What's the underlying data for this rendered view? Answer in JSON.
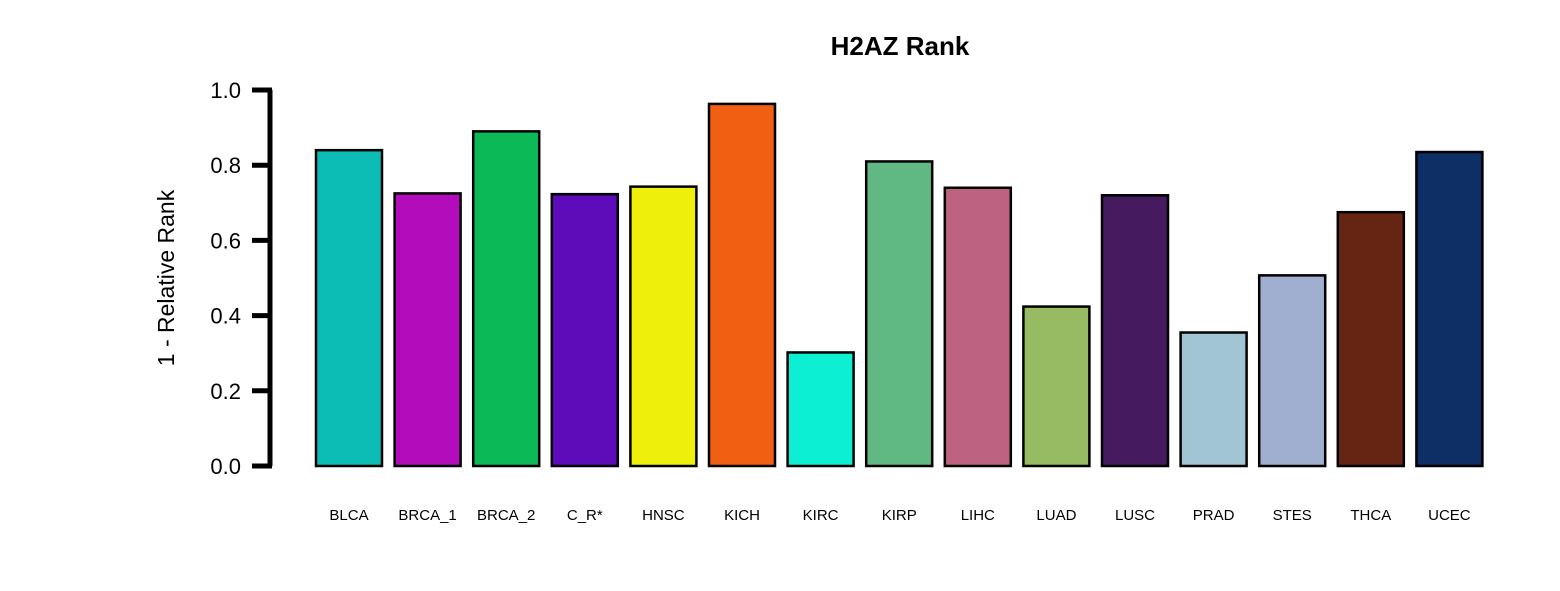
{
  "chart_data": {
    "type": "bar",
    "title": "H2AZ Rank",
    "xlabel": "",
    "ylabel": "1 - Relative Rank",
    "ylim": [
      0,
      1
    ],
    "yticks": [
      "0.0",
      "0.2",
      "0.4",
      "0.6",
      "0.8",
      "1.0"
    ],
    "grid": false,
    "legend": "none",
    "categories": [
      "BLCA",
      "BRCA_1",
      "BRCA_2",
      "C_R*",
      "HNSC",
      "KICH",
      "KIRC",
      "KIRP",
      "LIHC",
      "LUAD",
      "LUSC",
      "PRAD",
      "STES",
      "THCA",
      "UCEC"
    ],
    "values": [
      0.84,
      0.725,
      0.89,
      0.723,
      0.743,
      0.963,
      0.302,
      0.81,
      0.74,
      0.424,
      0.72,
      0.355,
      0.507,
      0.675,
      0.835
    ],
    "colors": [
      "#0BBDB5",
      "#B30DBB",
      "#0BB956",
      "#5E0BBA",
      "#EFEF0C",
      "#F05F12",
      "#0DEFD2",
      "#60B983",
      "#BD6281",
      "#96BB62",
      "#461A5F",
      "#A1C5D3",
      "#A0AED0",
      "#662512",
      "#0E2F65"
    ]
  }
}
